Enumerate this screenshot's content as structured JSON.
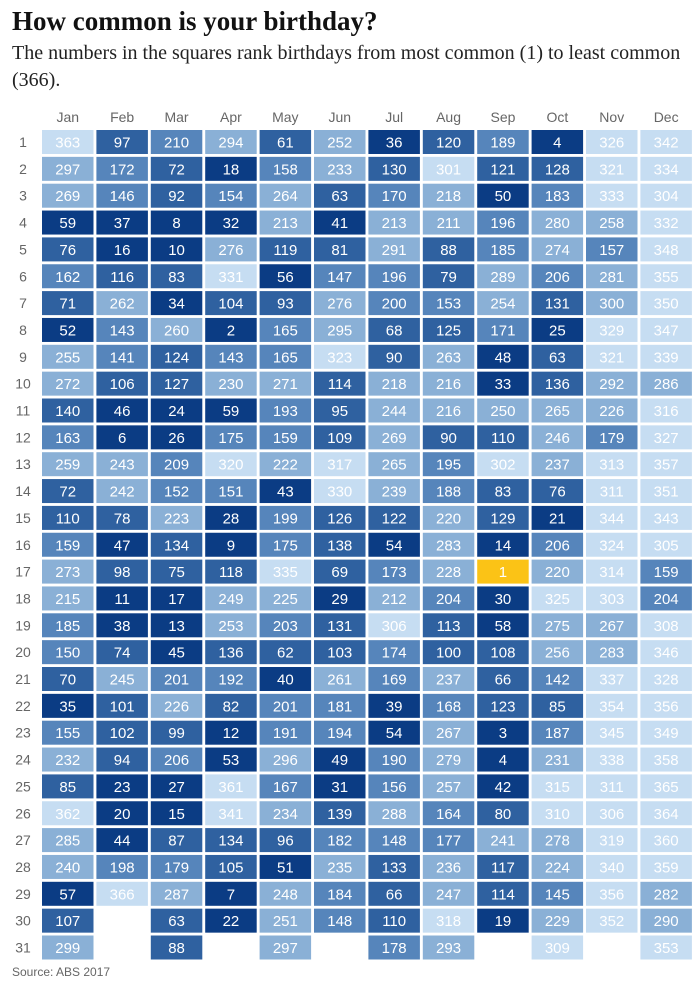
{
  "title": "How common is your birthday?",
  "subtitle": "The numbers in the squares rank birthdays from most common (1) to least common (366).",
  "source": "Source: ABS 2017",
  "colors": {
    "highlight": "#fbc316",
    "rank_scale": [
      "#0b3c84",
      "#2f61a0",
      "#5685bb",
      "#8ab0d6",
      "#c6ddf2"
    ],
    "empty_text_light": "#ffffff",
    "empty_text_dark": "#1c2e50",
    "header_text": "#666666"
  },
  "chart_data": {
    "type": "heatmap",
    "title": "How common is your birthday?",
    "subtitle": "The numbers in the squares rank birthdays from most common (1) to least common (366).",
    "xlabel": "",
    "ylabel": "",
    "value_range": [
      1,
      366
    ],
    "months": [
      "Jan",
      "Feb",
      "Mar",
      "Apr",
      "May",
      "Jun",
      "Jul",
      "Aug",
      "Sep",
      "Oct",
      "Nov",
      "Dec"
    ],
    "days": [
      "1",
      "2",
      "3",
      "4",
      "5",
      "6",
      "7",
      "8",
      "9",
      "10",
      "11",
      "12",
      "13",
      "14",
      "15",
      "16",
      "17",
      "18",
      "19",
      "20",
      "21",
      "22",
      "23",
      "24",
      "25",
      "26",
      "27",
      "28",
      "29",
      "30",
      "31"
    ],
    "ranks": [
      [
        363,
        297,
        269,
        59,
        76,
        162,
        71,
        52,
        255,
        272,
        140,
        163,
        259,
        72,
        110,
        159,
        273,
        215,
        185,
        150,
        70,
        35,
        155,
        232,
        85,
        362,
        285,
        240,
        57,
        107,
        299
      ],
      [
        97,
        172,
        146,
        37,
        16,
        116,
        262,
        143,
        141,
        106,
        46,
        6,
        243,
        242,
        78,
        47,
        98,
        11,
        38,
        74,
        245,
        101,
        102,
        94,
        23,
        20,
        44,
        198,
        366
      ],
      [
        210,
        72,
        92,
        8,
        10,
        83,
        34,
        260,
        124,
        127,
        24,
        26,
        209,
        152,
        223,
        134,
        75,
        17,
        13,
        45,
        201,
        226,
        99,
        206,
        27,
        15,
        87,
        179,
        287,
        63,
        88
      ],
      [
        294,
        18,
        154,
        32,
        276,
        331,
        104,
        2,
        143,
        230,
        59,
        175,
        320,
        151,
        28,
        9,
        118,
        249,
        253,
        136,
        192,
        82,
        12,
        53,
        361,
        341,
        134,
        105,
        7,
        22
      ],
      [
        61,
        158,
        264,
        213,
        119,
        56,
        93,
        165,
        165,
        271,
        193,
        159,
        222,
        43,
        199,
        175,
        335,
        225,
        203,
        62,
        40,
        201,
        191,
        296,
        167,
        234,
        96,
        51,
        248,
        251,
        297
      ],
      [
        252,
        233,
        63,
        41,
        81,
        147,
        276,
        295,
        323,
        114,
        95,
        109,
        317,
        330,
        126,
        138,
        69,
        29,
        131,
        103,
        261,
        181,
        194,
        49,
        31,
        139,
        182,
        235,
        184,
        148
      ],
      [
        36,
        130,
        170,
        213,
        291,
        196,
        200,
        68,
        90,
        218,
        244,
        269,
        265,
        239,
        122,
        54,
        173,
        212,
        306,
        174,
        169,
        39,
        54,
        190,
        156,
        288,
        148,
        133,
        66,
        110,
        178
      ],
      [
        120,
        301,
        218,
        211,
        88,
        79,
        153,
        125,
        263,
        216,
        216,
        90,
        195,
        188,
        220,
        283,
        228,
        204,
        113,
        100,
        237,
        168,
        267,
        279,
        257,
        164,
        177,
        236,
        247,
        318,
        293
      ],
      [
        189,
        121,
        50,
        196,
        185,
        289,
        254,
        171,
        48,
        33,
        250,
        110,
        302,
        83,
        129,
        14,
        1,
        30,
        58,
        108,
        66,
        123,
        3,
        4,
        42,
        80,
        241,
        117,
        114,
        19
      ],
      [
        4,
        128,
        183,
        280,
        274,
        206,
        131,
        25,
        63,
        136,
        265,
        246,
        237,
        76,
        21,
        206,
        220,
        325,
        275,
        256,
        142,
        85,
        187,
        231,
        315,
        310,
        278,
        224,
        145,
        229,
        309
      ],
      [
        326,
        321,
        333,
        258,
        157,
        281,
        300,
        329,
        321,
        292,
        226,
        179,
        313,
        311,
        344,
        324,
        314,
        303,
        267,
        283,
        337,
        354,
        345,
        338,
        311,
        306,
        319,
        340,
        356,
        352
      ],
      [
        342,
        334,
        304,
        332,
        348,
        355,
        350,
        347,
        339,
        286,
        316,
        327,
        357,
        351,
        343,
        305,
        159,
        204,
        308,
        346,
        328,
        356,
        349,
        358,
        365,
        364,
        360,
        359,
        282,
        290,
        353
      ]
    ]
  }
}
